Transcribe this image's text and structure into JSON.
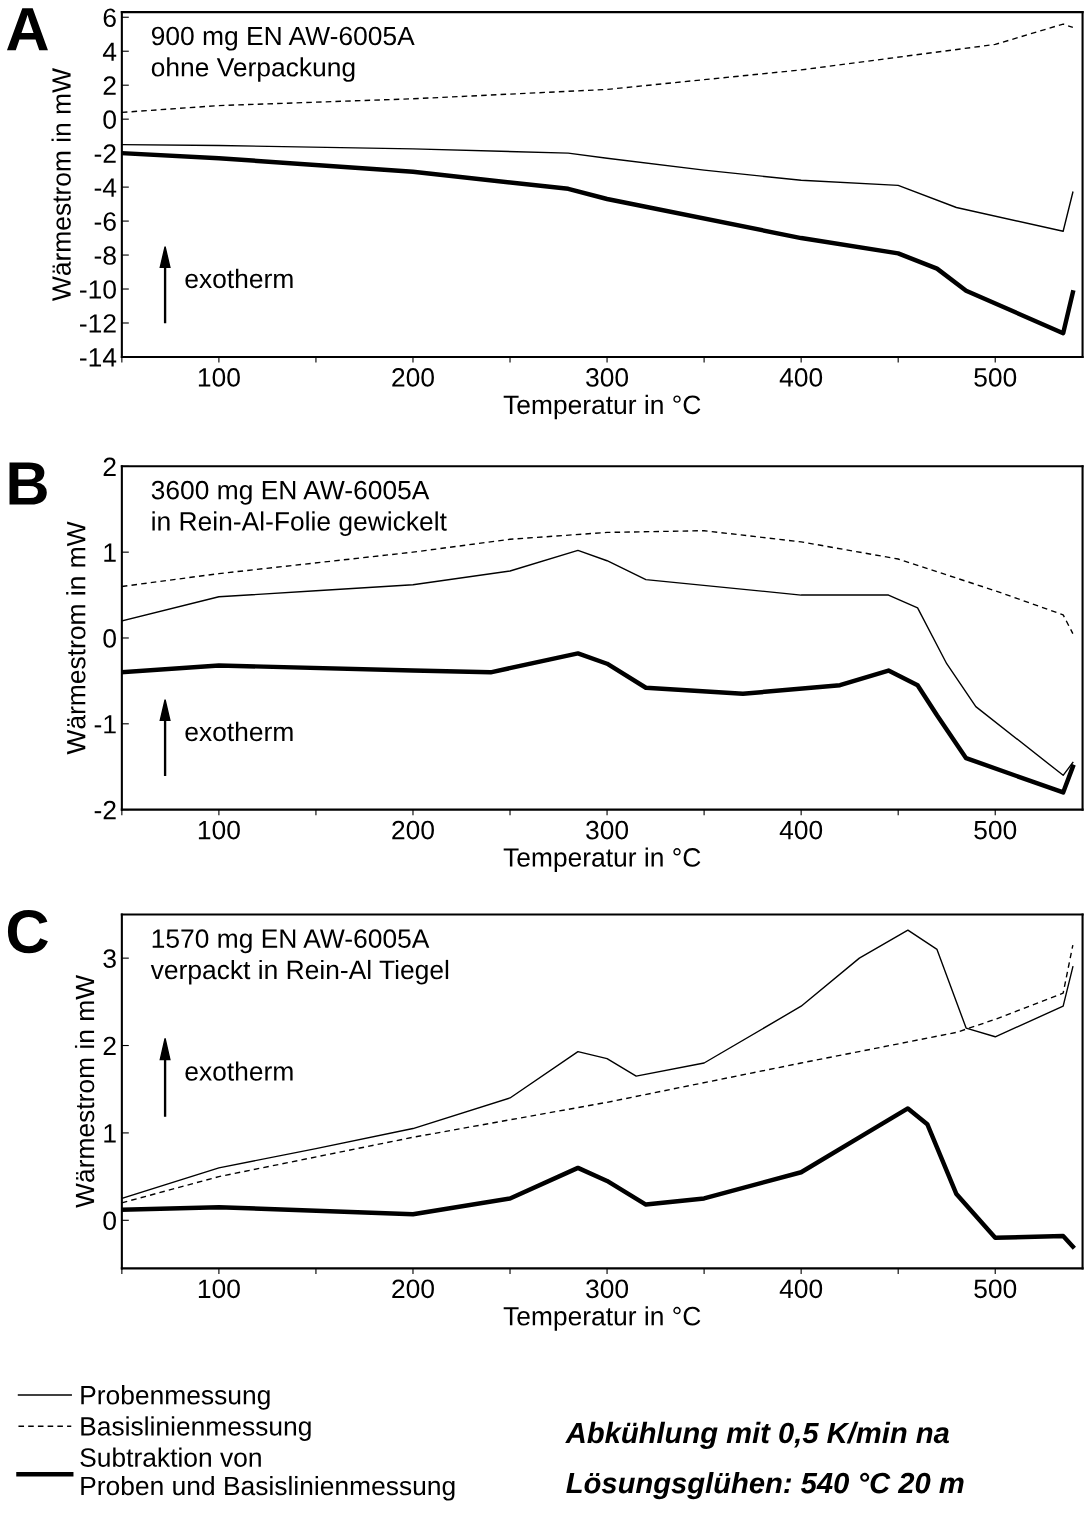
{
  "chart_data": [
    {
      "type": "line",
      "title": "A",
      "xlabel": "Temperatur in °C",
      "ylabel": "Wärmestrom in mW",
      "annotations": [
        "900 mg EN AW-6005A\nohne Verpackung",
        "exotherm"
      ],
      "xlim": [
        50,
        545
      ],
      "ylim": [
        -14,
        6.3
      ],
      "xticks": [
        {
          "value": 50,
          "label": null
        },
        100,
        {
          "value": 150,
          "label": null
        },
        200,
        {
          "value": 250,
          "label": null
        },
        300,
        {
          "value": 350,
          "label": null
        },
        400,
        {
          "value": 450,
          "label": null
        },
        500
      ],
      "yticks": [
        -14,
        -12,
        -10,
        -8,
        -6,
        -4,
        -2,
        0,
        2,
        4,
        6
      ],
      "grid": false,
      "legend": false,
      "series": [
        {
          "color": "#000000",
          "line_style": "solid",
          "x": [
            50,
            100,
            200,
            280,
            300,
            350,
            400,
            450,
            480,
            535,
            540
          ],
          "values": [
            -1.5,
            -1.55,
            -1.75,
            -2.0,
            -2.3,
            -3.0,
            -3.6,
            -3.9,
            -5.2,
            -6.6,
            -4.3
          ]
        },
        {
          "color": "#000000",
          "line_style": "dashed",
          "x": [
            50,
            100,
            200,
            300,
            400,
            500,
            535,
            540
          ],
          "values": [
            0.4,
            0.8,
            1.2,
            1.75,
            2.9,
            4.4,
            5.6,
            5.4
          ]
        },
        {
          "color": "#000000",
          "line_style": "solid",
          "x": [
            50,
            100,
            200,
            280,
            300,
            400,
            450,
            470,
            485,
            535,
            540
          ],
          "values": [
            -2.0,
            -2.3,
            -3.1,
            -4.1,
            -4.7,
            -7.0,
            -7.9,
            -8.8,
            -10.1,
            -12.6,
            -10.2
          ]
        }
      ]
    },
    {
      "type": "line",
      "title": "B",
      "xlabel": "Temperatur in °C",
      "ylabel": "Wärmestrom in mW",
      "annotations": [
        "3600 mg EN AW-6005A\nin Rein-Al-Folie gewickelt",
        "exotherm"
      ],
      "xlim": [
        50,
        545
      ],
      "ylim": [
        -2,
        2
      ],
      "xticks": [
        {
          "value": 50,
          "label": null
        },
        100,
        {
          "value": 150,
          "label": null
        },
        200,
        {
          "value": 250,
          "label": null
        },
        300,
        {
          "value": 350,
          "label": null
        },
        400,
        {
          "value": 450,
          "label": null
        },
        500
      ],
      "yticks": [
        -2,
        -1,
        0,
        1,
        2
      ],
      "grid": false,
      "legend": false,
      "series": [
        {
          "color": "#000000",
          "line_style": "solid",
          "x": [
            50,
            100,
            150,
            200,
            250,
            285,
            300,
            320,
            400,
            445,
            460,
            475,
            490,
            535,
            540
          ],
          "values": [
            0.2,
            0.48,
            0.55,
            0.62,
            0.78,
            1.02,
            0.9,
            0.68,
            0.5,
            0.5,
            0.35,
            -0.3,
            -0.8,
            -1.6,
            -1.45
          ]
        },
        {
          "color": "#000000",
          "line_style": "dashed",
          "x": [
            50,
            100,
            200,
            250,
            300,
            350,
            400,
            450,
            500,
            535,
            540
          ],
          "values": [
            0.6,
            0.75,
            1.0,
            1.15,
            1.23,
            1.25,
            1.12,
            0.92,
            0.55,
            0.27,
            0.05
          ]
        },
        {
          "color": "#000000",
          "line_style": "solid",
          "x": [
            50,
            100,
            200,
            240,
            285,
            300,
            320,
            370,
            420,
            445,
            460,
            470,
            485,
            535,
            540
          ],
          "values": [
            -0.4,
            -0.32,
            -0.38,
            -0.4,
            -0.18,
            -0.3,
            -0.58,
            -0.65,
            -0.55,
            -0.38,
            -0.55,
            -0.9,
            -1.4,
            -1.8,
            -1.5
          ]
        }
      ]
    },
    {
      "type": "line",
      "title": "C",
      "xlabel": "Temperatur in °C",
      "ylabel": "Wärmestrom in mW",
      "annotations": [
        "1570 mg EN AW-6005A\nverpackt in Rein-Al Tiegel",
        "exotherm",
        "Abkühlung mit 0,5 K/min na",
        "Lösungsglühen: 540 °C 20 m"
      ],
      "xlim": [
        50,
        545
      ],
      "ylim": [
        -0.55,
        3.5
      ],
      "xticks": [
        {
          "value": 50,
          "label": null
        },
        100,
        {
          "value": 150,
          "label": null
        },
        200,
        {
          "value": 250,
          "label": null
        },
        300,
        {
          "value": 350,
          "label": null
        },
        400,
        {
          "value": 450,
          "label": null
        },
        500
      ],
      "yticks": [
        0,
        1,
        2,
        3
      ],
      "grid": false,
      "legend": "bottom left",
      "series": [
        {
          "name": "Probenmessung",
          "color": "#000000",
          "line_style": "solid",
          "x": [
            50,
            100,
            150,
            200,
            250,
            285,
            300,
            315,
            350,
            400,
            430,
            455,
            470,
            485,
            500,
            535,
            540
          ],
          "values": [
            0.25,
            0.6,
            0.82,
            1.05,
            1.4,
            1.93,
            1.85,
            1.65,
            1.8,
            2.45,
            3.0,
            3.32,
            3.1,
            2.2,
            2.1,
            2.45,
            2.9
          ]
        },
        {
          "name": "Basislinienmessung",
          "color": "#000000",
          "line_style": "dashed",
          "x": [
            50,
            100,
            200,
            300,
            400,
            480,
            500,
            535,
            540
          ],
          "values": [
            0.2,
            0.5,
            0.95,
            1.35,
            1.8,
            2.15,
            2.3,
            2.6,
            3.15
          ]
        },
        {
          "name": "Subtraktion von\nProben und Basislinienmessung",
          "color": "#000000",
          "line_style": "solid",
          "x": [
            50,
            100,
            200,
            250,
            285,
            300,
            320,
            350,
            400,
            430,
            455,
            465,
            480,
            500,
            535,
            540
          ],
          "values": [
            0.12,
            0.15,
            0.07,
            0.25,
            0.6,
            0.45,
            0.18,
            0.25,
            0.55,
            0.95,
            1.28,
            1.1,
            0.3,
            -0.2,
            -0.18,
            -0.3
          ]
        }
      ]
    }
  ]
}
